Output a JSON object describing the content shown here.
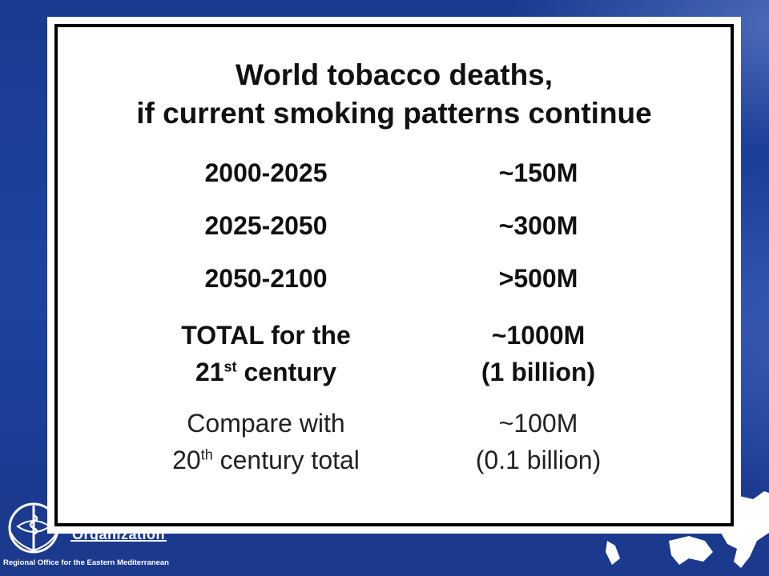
{
  "slide": {
    "title_line1": "World tobacco deaths,",
    "title_line2": "if current smoking patterns continue",
    "rows": [
      {
        "period": "2000-2025",
        "deaths": "~150M"
      },
      {
        "period": "2025-2050",
        "deaths": "~300M"
      },
      {
        "period": "2050-2100",
        "deaths": ">500M"
      }
    ],
    "total": {
      "label_line1": "TOTAL for the",
      "label_line2_num": "21",
      "label_line2_sup": "st",
      "label_line2_rest": " century",
      "value_line1": "~1000M",
      "value_line2": "(1 billion)"
    },
    "compare": {
      "label_line1": "Compare with",
      "label_line2_num": "20",
      "label_line2_sup": "th",
      "label_line2_rest": " century total",
      "value_line1": "~100M",
      "value_line2": "(0.1 billion)"
    }
  },
  "footer": {
    "org_name": "Organization",
    "office_name": "Regional Office for the Eastern Mediterranean"
  },
  "colors": {
    "background": "#1f3f94",
    "card": "#ffffff",
    "border": "#000000"
  }
}
